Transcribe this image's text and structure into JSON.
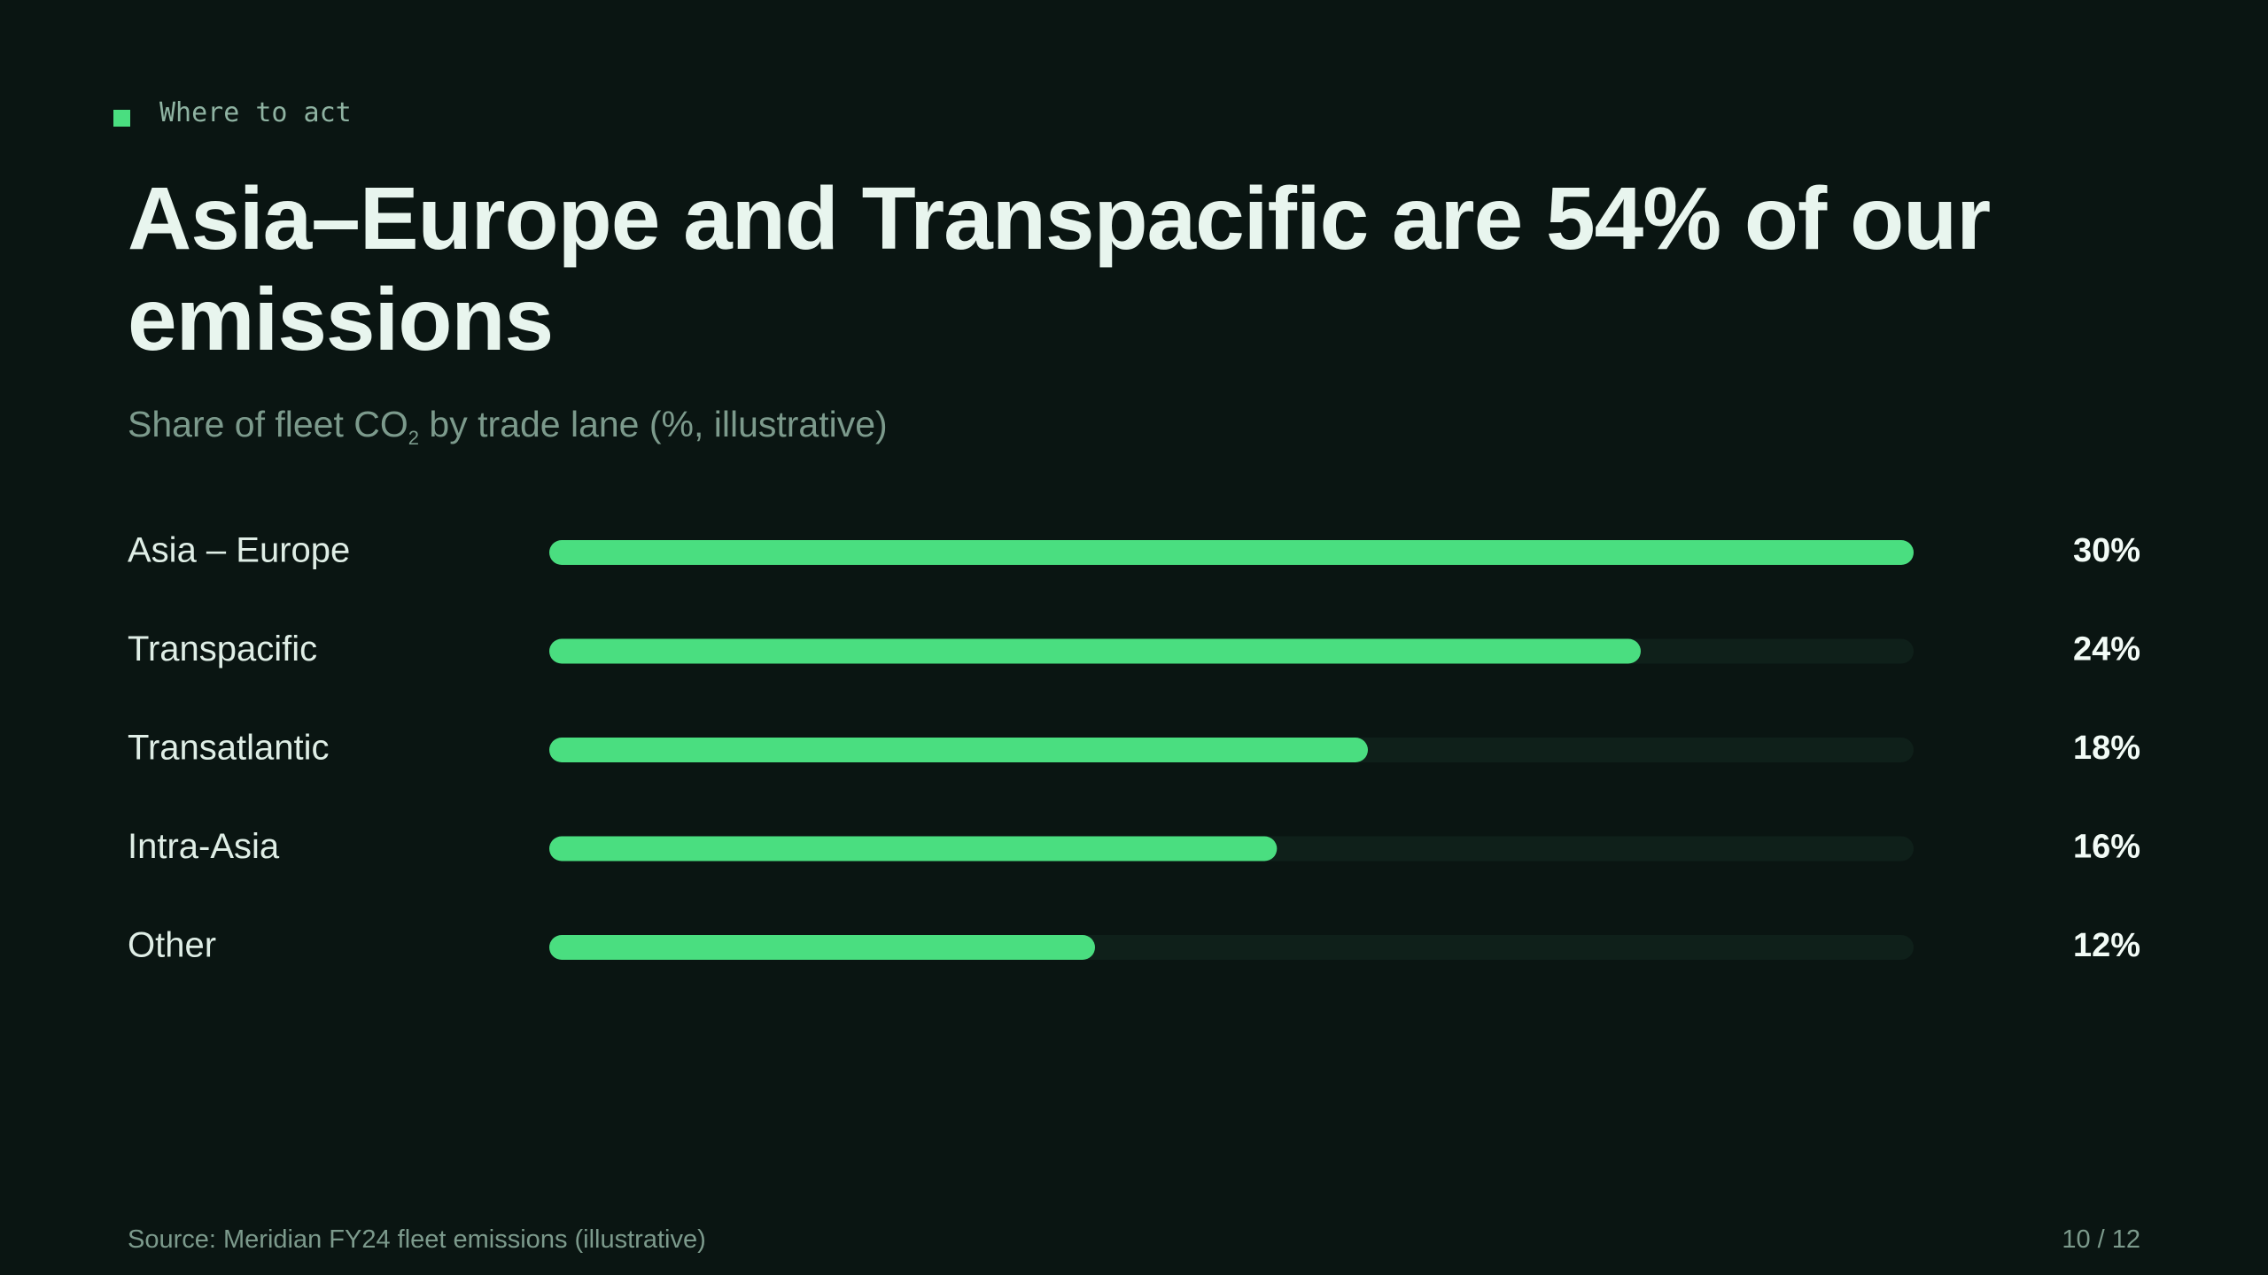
{
  "eyebrow": "Where to act",
  "chart_data": {
    "type": "bar",
    "orientation": "horizontal",
    "title": "Asia–Europe and Transpacific are 54% of our emissions",
    "subtitle": [
      "Share of fleet CO",
      "2",
      " by trade lane (%, illustrative)"
    ],
    "categories": [
      "Asia – Europe",
      "Transpacific",
      "Transatlantic",
      "Intra-Asia",
      "Other"
    ],
    "values": [
      30,
      24,
      18,
      16,
      12
    ],
    "value_labels": [
      "30%",
      "24%",
      "18%",
      "16%",
      "12%"
    ],
    "color": "#4ade80",
    "track_color": "#0f201a",
    "xlim": [
      0,
      30
    ]
  },
  "footer": {
    "source": "Source: Meridian FY24 fleet emissions (illustrative)",
    "page": "10 / 12"
  }
}
